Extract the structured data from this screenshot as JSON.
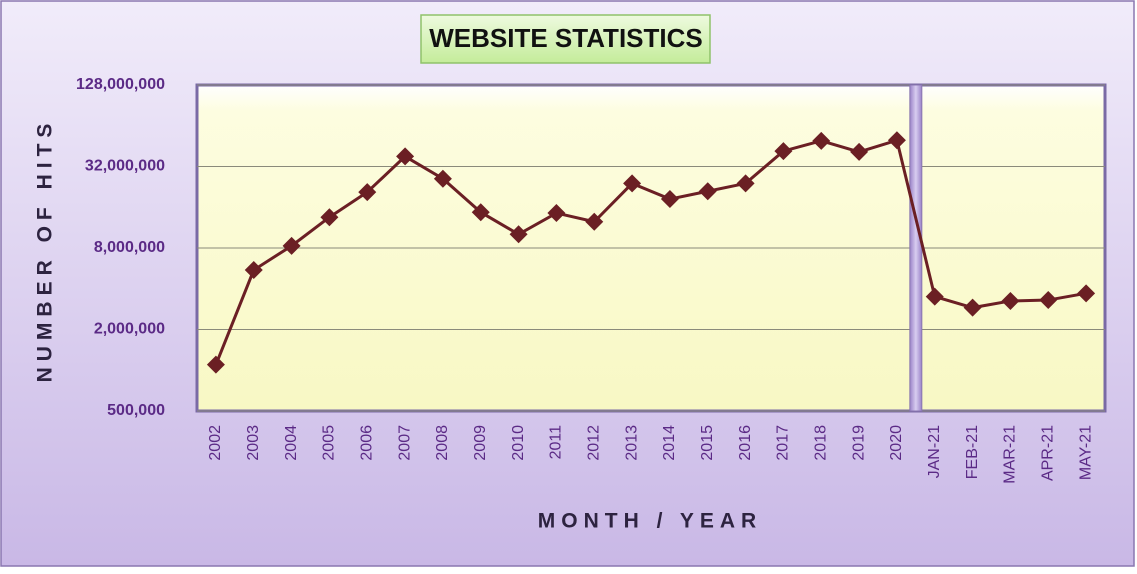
{
  "chart_data": {
    "type": "line",
    "title": "WEBSITE STATISTICS",
    "x_label": "MONTH / YEAR",
    "y_label": "NUMBER OF HITS",
    "log_scale": true,
    "grid": true,
    "categories": [
      "2002",
      "2003",
      "2004",
      "2005",
      "2006",
      "2007",
      "2008",
      "2009",
      "2010",
      "2011",
      "2012",
      "2013",
      "2014",
      "2015",
      "2016",
      "2017",
      "2018",
      "2019",
      "2020",
      "JAN-21",
      "FEB-21",
      "MAR-21",
      "APR-21",
      "MAY-21"
    ],
    "series": [
      {
        "name": "Hits",
        "color": "#6b1f24",
        "values": [
          1100000,
          5500000,
          8300000,
          13500000,
          20700000,
          38000000,
          26000000,
          14700000,
          10100000,
          14500000,
          12500000,
          24000000,
          18400000,
          21000000,
          24000000,
          41600000,
          49500000,
          41000000,
          50000000,
          3500000,
          2900000,
          3250000,
          3300000,
          3700000
        ]
      }
    ],
    "ylim": [
      500000,
      128000000
    ],
    "yticks": [
      {
        "value": 500000,
        "label": "500,000"
      },
      {
        "value": 2000000,
        "label": "2,000,000"
      },
      {
        "value": 8000000,
        "label": "8,000,000"
      },
      {
        "value": 32000000,
        "label": "32,000,000"
      },
      {
        "value": 128000000,
        "label": "128,000,000"
      }
    ]
  }
}
